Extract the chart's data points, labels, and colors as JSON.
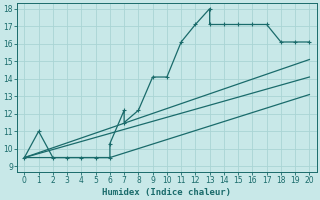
{
  "bg_color": "#c8e8e8",
  "grid_color": "#aad4d4",
  "line_color": "#1a6b6b",
  "xlabel": "Humidex (Indice chaleur)",
  "xlim": [
    -0.5,
    20.5
  ],
  "ylim": [
    8.7,
    18.3
  ],
  "yticks": [
    9,
    10,
    11,
    12,
    13,
    14,
    15,
    16,
    17,
    18
  ],
  "xticks": [
    0,
    1,
    2,
    3,
    4,
    5,
    6,
    7,
    8,
    9,
    10,
    11,
    12,
    13,
    14,
    15,
    16,
    17,
    18,
    19,
    20
  ],
  "line_main": {
    "x": [
      0,
      1,
      2,
      3,
      4,
      5,
      6,
      6,
      7,
      7,
      8,
      9,
      10,
      11,
      12,
      13,
      13,
      14,
      15,
      16,
      17,
      18,
      19,
      20
    ],
    "y": [
      9.5,
      11.0,
      9.5,
      9.5,
      9.5,
      9.5,
      9.5,
      10.3,
      12.2,
      11.5,
      12.2,
      14.1,
      14.1,
      16.1,
      17.1,
      18.0,
      17.1,
      17.1,
      17.1,
      17.1,
      17.1,
      16.1,
      16.1,
      16.1
    ]
  },
  "line_top": {
    "x": [
      0,
      20
    ],
    "y": [
      9.5,
      15.1
    ]
  },
  "line_mid": {
    "x": [
      0,
      20
    ],
    "y": [
      9.5,
      14.1
    ]
  },
  "line_bot": {
    "x": [
      0,
      6,
      20
    ],
    "y": [
      9.5,
      9.5,
      13.1
    ]
  },
  "markersize": 2.5
}
